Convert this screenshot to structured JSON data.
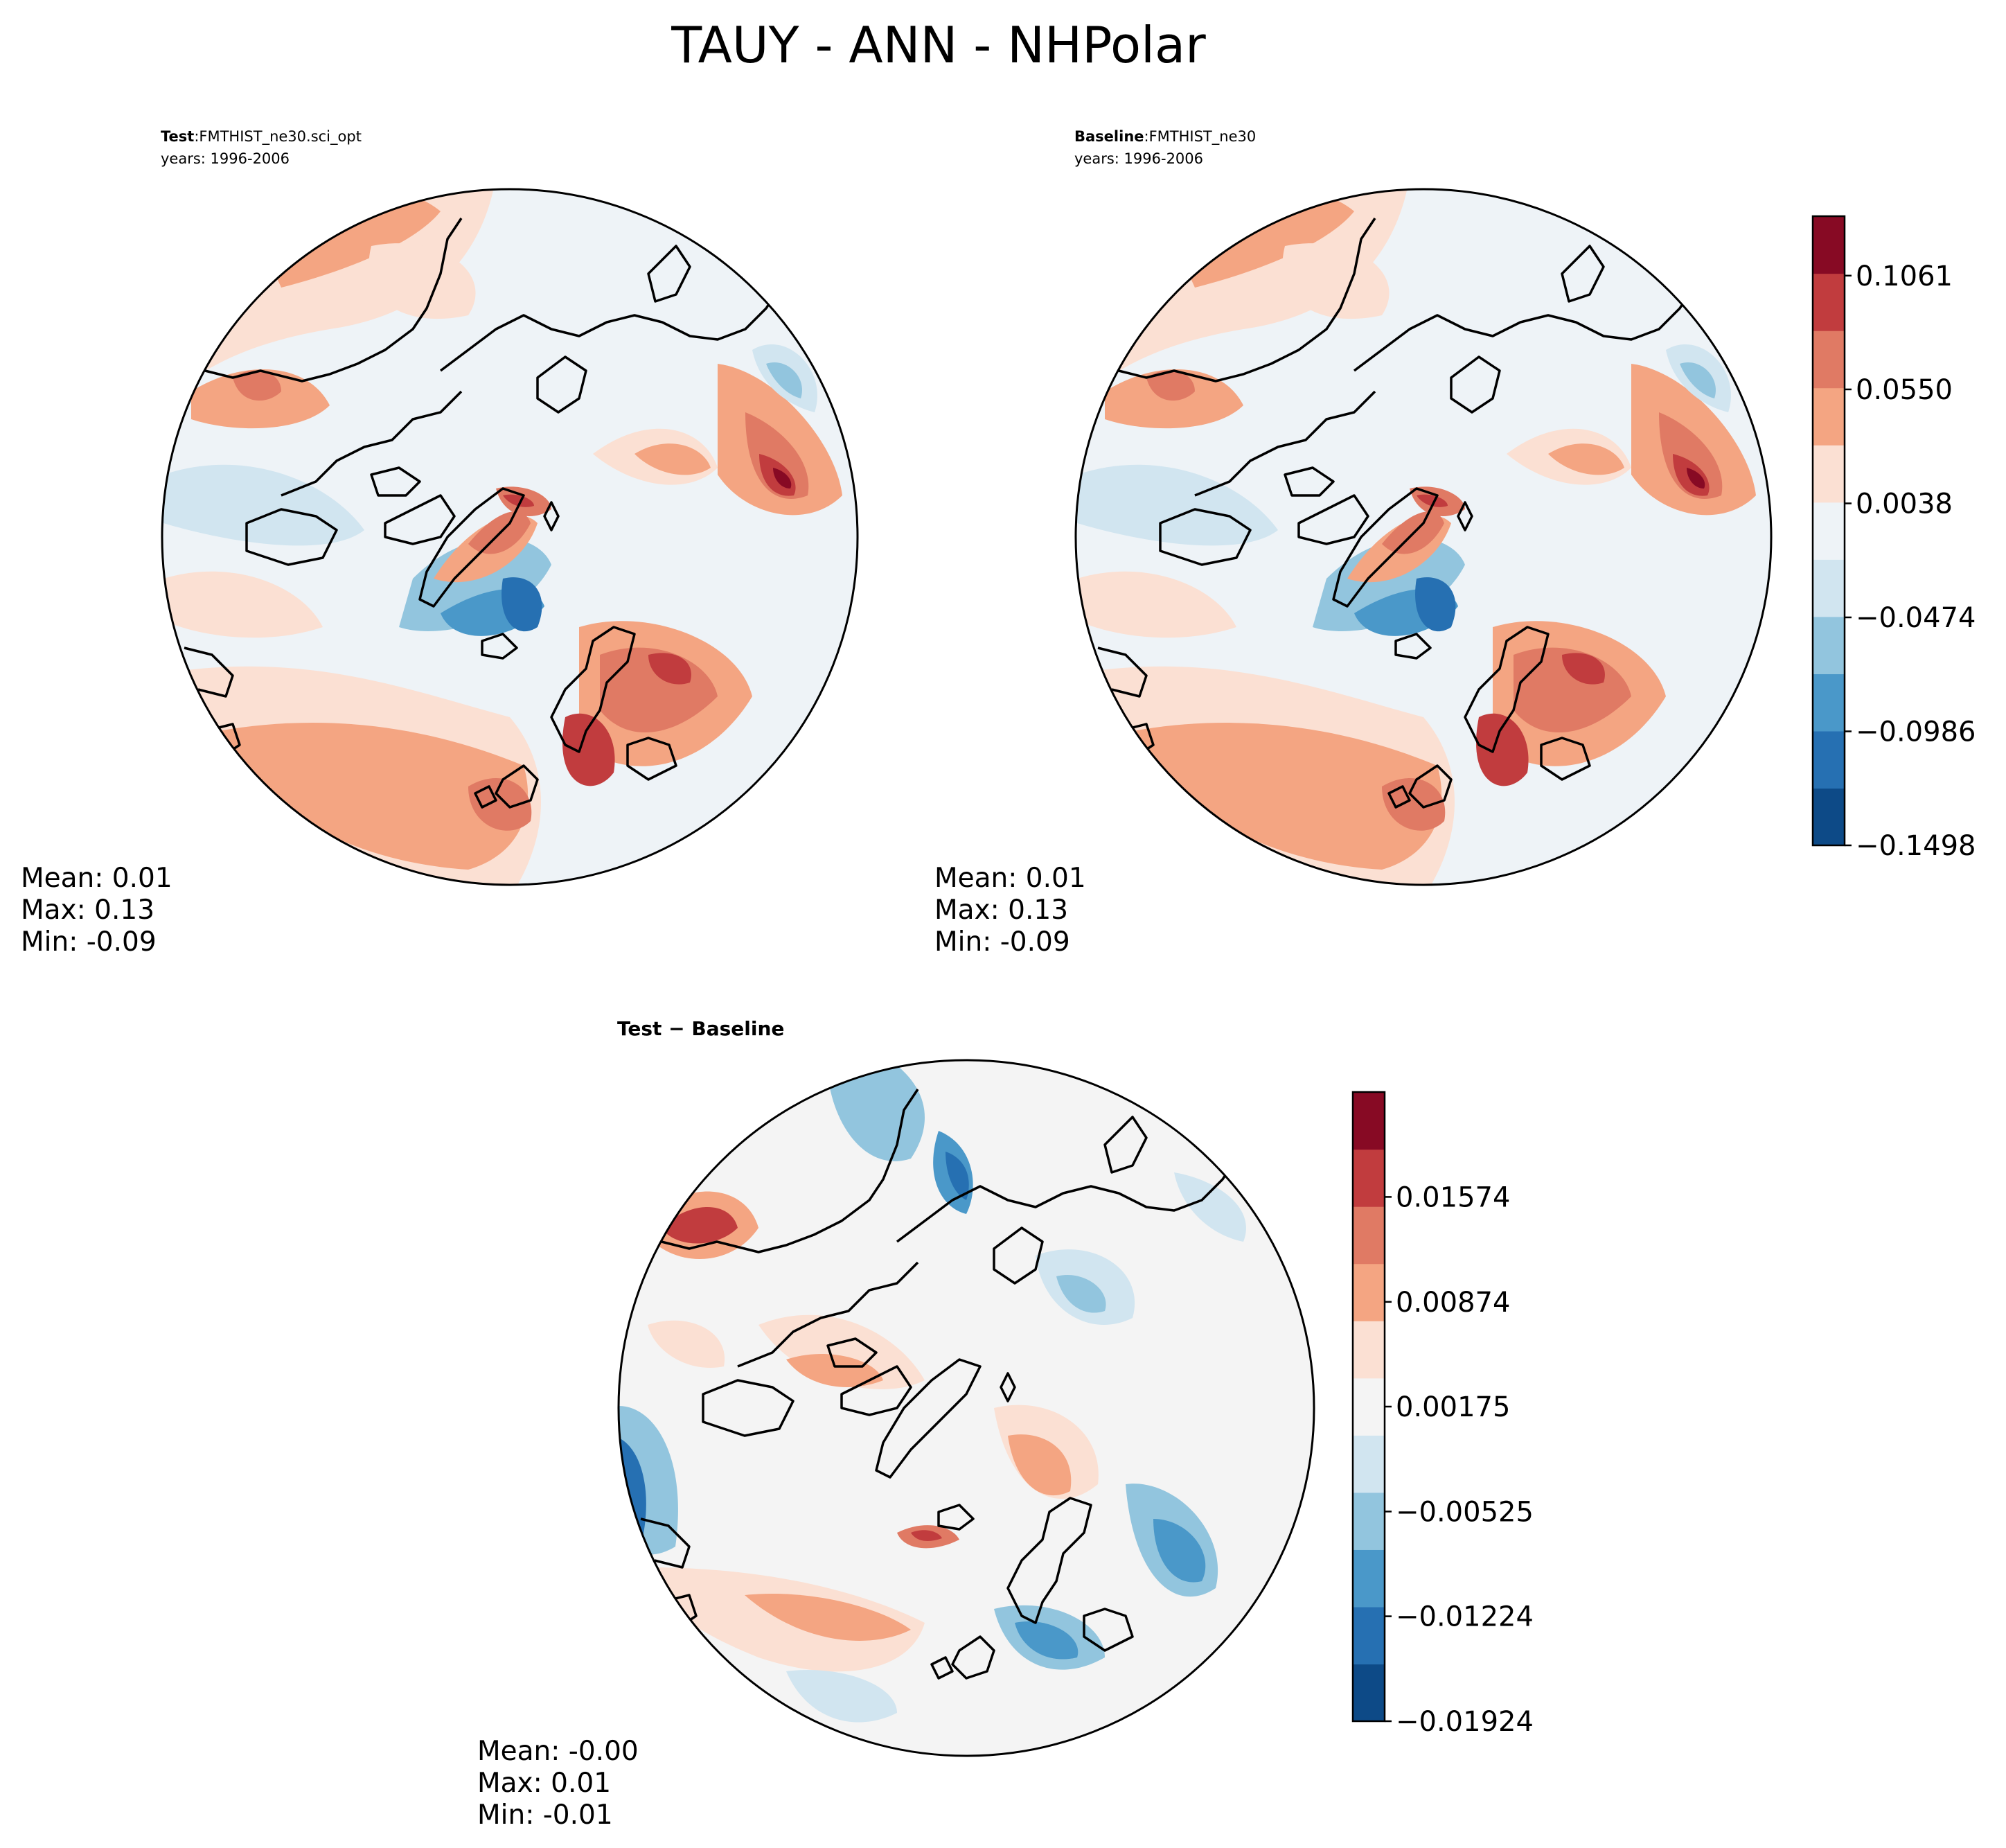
{
  "figure_title": "TAUY - ANN - NHPolar",
  "chart_data": [
    {
      "type": "polar_contour",
      "panel": "test",
      "label_bold": "Test",
      "label_sep": ":",
      "case": "FMTHIST_ne30.sci_opt",
      "years": "years: 1996-2006",
      "stats": {
        "mean": "Mean:  0.01",
        "max": "Max:  0.13",
        "min": "Min: -0.09"
      },
      "colorbar_ref": "main"
    },
    {
      "type": "polar_contour",
      "panel": "baseline",
      "label_bold": "Baseline",
      "label_sep": ":",
      "case": "FMTHIST_ne30",
      "years": "years: 1996-2006",
      "stats": {
        "mean": "Mean:  0.01",
        "max": "Max:  0.13",
        "min": "Min: -0.09"
      },
      "colorbar_ref": "main"
    },
    {
      "type": "polar_contour",
      "panel": "difference",
      "title": "Test − Baseline",
      "stats": {
        "mean": "Mean: -0.00",
        "max": "Max:  0.01",
        "min": "Min: -0.01"
      },
      "colorbar_ref": "diff"
    }
  ],
  "colorbars": {
    "main": {
      "min": -0.1498,
      "max": 0.1328,
      "levels": 11,
      "ticks": [
        0.1061,
        0.055,
        0.0038,
        -0.0474,
        -0.0986,
        -0.1498
      ],
      "tick_labels": [
        "0.1061",
        "0.0550",
        "0.0038",
        "−0.0474",
        "−0.0986",
        "−0.1498"
      ]
    },
    "diff": {
      "min": -0.01924,
      "max": 0.02274,
      "levels": 11,
      "ticks": [
        0.01574,
        0.00874,
        0.00175,
        -0.00525,
        -0.01224,
        -0.01924
      ],
      "tick_labels": [
        "0.01574",
        "0.00874",
        "0.00175",
        "−0.00525",
        "−0.01224",
        "−0.01924"
      ]
    }
  },
  "palette": [
    "#0d4a87",
    "#2670b2",
    "#4a98c9",
    "#92c5de",
    "#d1e5f0",
    "#eef3f7",
    "#fbe0d3",
    "#f4a582",
    "#e07a64",
    "#c13c3e",
    "#870a24"
  ],
  "diff_neutral": "#f4f4f4"
}
